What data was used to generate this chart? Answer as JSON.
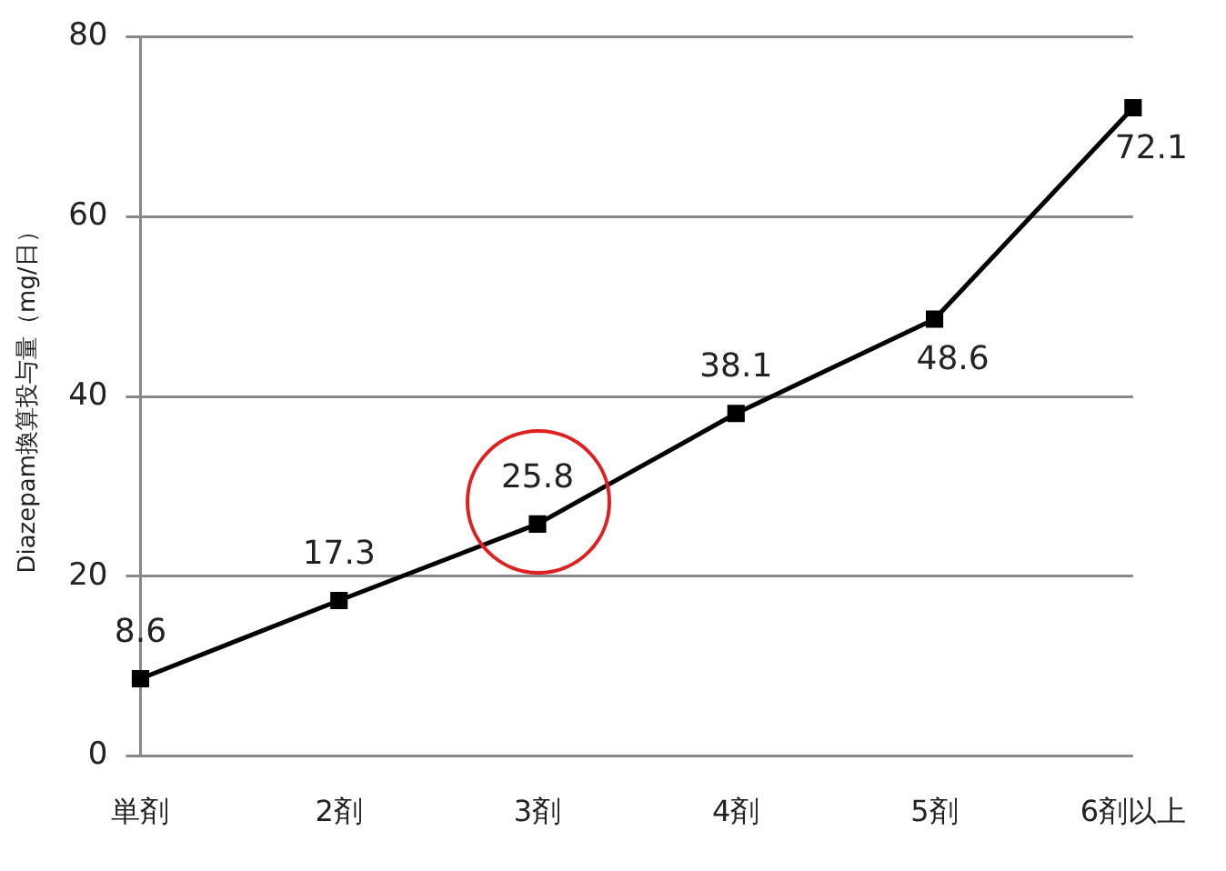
{
  "chart_data": {
    "type": "line",
    "ylabel": "Diazepam換算投与量（mg/日）",
    "categories": [
      "単剤",
      "2剤",
      "3剤",
      "4剤",
      "5剤",
      "6剤以上"
    ],
    "series": [
      {
        "color": "#000000",
        "values": [
          8.6,
          17.3,
          25.8,
          38.1,
          48.6,
          72.1
        ]
      }
    ],
    "ylim": [
      0,
      80
    ],
    "yticks": [
      0,
      20,
      40,
      60,
      80
    ],
    "grid": "y",
    "legend": false,
    "marker": "square",
    "line_style": "solid",
    "data_labels": true
  }
}
